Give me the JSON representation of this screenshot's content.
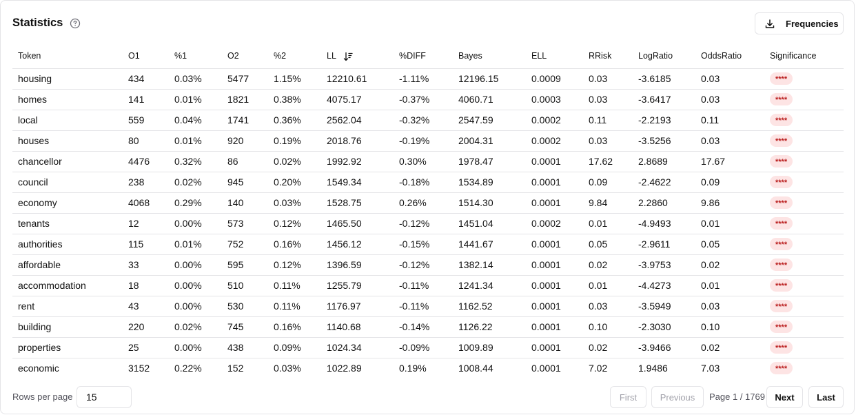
{
  "header": {
    "title": "Statistics",
    "help_icon": "question-circle-icon",
    "frequencies_label": "Frequencies",
    "download_icon": "download-icon"
  },
  "table": {
    "columns": [
      "Token",
      "O1",
      "%1",
      "O2",
      "%2",
      "LL",
      "%DIFF",
      "Bayes",
      "ELL",
      "RRisk",
      "LogRatio",
      "OddsRatio",
      "Significance"
    ],
    "sorted_column": "LL",
    "sort_icon": "sort-descending-icon",
    "rows": [
      [
        "housing",
        "434",
        "0.03%",
        "5477",
        "1.15%",
        "12210.61",
        "-1.11%",
        "12196.15",
        "0.0009",
        "0.03",
        "-3.6185",
        "0.03",
        "****"
      ],
      [
        "homes",
        "141",
        "0.01%",
        "1821",
        "0.38%",
        "4075.17",
        "-0.37%",
        "4060.71",
        "0.0003",
        "0.03",
        "-3.6417",
        "0.03",
        "****"
      ],
      [
        "local",
        "559",
        "0.04%",
        "1741",
        "0.36%",
        "2562.04",
        "-0.32%",
        "2547.59",
        "0.0002",
        "0.11",
        "-2.2193",
        "0.11",
        "****"
      ],
      [
        "houses",
        "80",
        "0.01%",
        "920",
        "0.19%",
        "2018.76",
        "-0.19%",
        "2004.31",
        "0.0002",
        "0.03",
        "-3.5256",
        "0.03",
        "****"
      ],
      [
        "chancellor",
        "4476",
        "0.32%",
        "86",
        "0.02%",
        "1992.92",
        "0.30%",
        "1978.47",
        "0.0001",
        "17.62",
        "2.8689",
        "17.67",
        "****"
      ],
      [
        "council",
        "238",
        "0.02%",
        "945",
        "0.20%",
        "1549.34",
        "-0.18%",
        "1534.89",
        "0.0001",
        "0.09",
        "-2.4622",
        "0.09",
        "****"
      ],
      [
        "economy",
        "4068",
        "0.29%",
        "140",
        "0.03%",
        "1528.75",
        "0.26%",
        "1514.30",
        "0.0001",
        "9.84",
        "2.2860",
        "9.86",
        "****"
      ],
      [
        "tenants",
        "12",
        "0.00%",
        "573",
        "0.12%",
        "1465.50",
        "-0.12%",
        "1451.04",
        "0.0002",
        "0.01",
        "-4.9493",
        "0.01",
        "****"
      ],
      [
        "authorities",
        "115",
        "0.01%",
        "752",
        "0.16%",
        "1456.12",
        "-0.15%",
        "1441.67",
        "0.0001",
        "0.05",
        "-2.9611",
        "0.05",
        "****"
      ],
      [
        "affordable",
        "33",
        "0.00%",
        "595",
        "0.12%",
        "1396.59",
        "-0.12%",
        "1382.14",
        "0.0001",
        "0.02",
        "-3.9753",
        "0.02",
        "****"
      ],
      [
        "accommodation",
        "18",
        "0.00%",
        "510",
        "0.11%",
        "1255.79",
        "-0.11%",
        "1241.34",
        "0.0001",
        "0.01",
        "-4.4273",
        "0.01",
        "****"
      ],
      [
        "rent",
        "43",
        "0.00%",
        "530",
        "0.11%",
        "1176.97",
        "-0.11%",
        "1162.52",
        "0.0001",
        "0.03",
        "-3.5949",
        "0.03",
        "****"
      ],
      [
        "building",
        "220",
        "0.02%",
        "745",
        "0.16%",
        "1140.68",
        "-0.14%",
        "1126.22",
        "0.0001",
        "0.10",
        "-2.3030",
        "0.10",
        "****"
      ],
      [
        "properties",
        "25",
        "0.00%",
        "438",
        "0.09%",
        "1024.34",
        "-0.09%",
        "1009.89",
        "0.0001",
        "0.02",
        "-3.9466",
        "0.02",
        "****"
      ],
      [
        "economic",
        "3152",
        "0.22%",
        "152",
        "0.03%",
        "1022.89",
        "0.19%",
        "1008.44",
        "0.0001",
        "7.02",
        "1.9486",
        "7.03",
        "****"
      ]
    ]
  },
  "footer": {
    "rows_per_page_label": "Rows per page",
    "rows_per_page_value": "15",
    "first_label": "First",
    "previous_label": "Previous",
    "page_info": "Page 1 / 1769",
    "next_label": "Next",
    "last_label": "Last"
  },
  "colors": {
    "badge_bg": "#fde4e4",
    "badge_text": "#b91c1c",
    "border": "#e4e4e7"
  }
}
